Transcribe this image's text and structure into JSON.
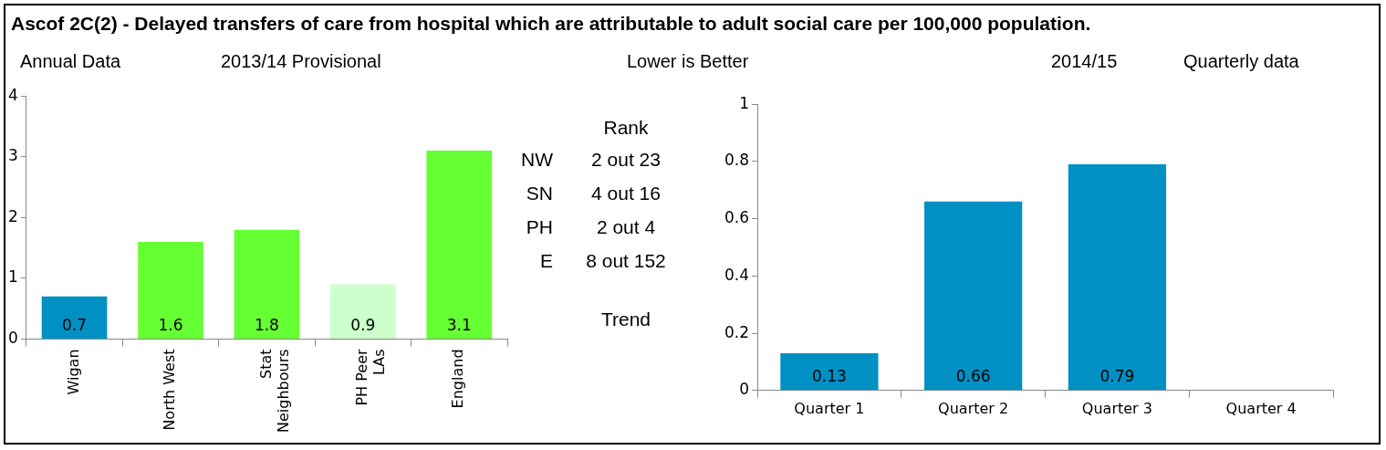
{
  "chart_data": [
    {
      "type": "bar",
      "title": "Ascof 2C(2) - Delayed transfers of care from hospital which are attributable to adult social care per 100,000 population.",
      "annotations": [
        "Annual Data",
        "2013/14 Provisional"
      ],
      "categories": [
        "Wigan",
        "North West",
        "Stat Neighbours",
        "PH Peer LAs",
        "England"
      ],
      "values": [
        0.7,
        1.6,
        1.8,
        0.9,
        3.1
      ],
      "colors": [
        "#0090c4",
        "#66ff33",
        "#66ff33",
        "#ccffcc",
        "#66ff33"
      ],
      "ylim": [
        0,
        4
      ],
      "yticks": [
        0,
        1,
        2,
        3,
        4
      ],
      "grid": false,
      "data_labels": true
    },
    {
      "type": "other",
      "annotations": [
        "Lower is Better",
        "Rank",
        "NW",
        "2 out 23",
        "SN",
        "4 out 16",
        "PH",
        "2 out 4",
        "E",
        "8 out 152",
        "Trend"
      ]
    },
    {
      "type": "bar",
      "annotations": [
        "2014/15",
        "Quarterly data"
      ],
      "categories": [
        "Quarter 1",
        "Quarter 2",
        "Quarter 3",
        "Quarter 4"
      ],
      "values": [
        0.13,
        0.66,
        0.79,
        null
      ],
      "color": "#0090c4",
      "ylim": [
        0,
        1
      ],
      "yticks": [
        0,
        0.2,
        0.4,
        0.6,
        0.8,
        1
      ],
      "grid": false,
      "data_labels": true
    }
  ]
}
